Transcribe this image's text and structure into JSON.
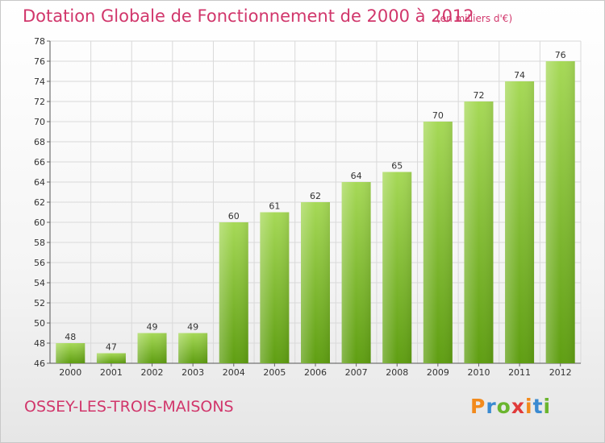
{
  "header": {
    "title": "Dotation Globale de Fonctionnement de 2000 à 2012",
    "subtitle": "(en milliers d'€)"
  },
  "footer": {
    "commune": "OSSEY-LES-TROIS-MAISONS",
    "logo_text": "Proxiti"
  },
  "colors": {
    "title": "#d1366b",
    "bar_light": "#9fd54e",
    "bar_dark": "#5f9e12",
    "grid": "#d9d9d9"
  },
  "chart_data": {
    "type": "bar",
    "title": "Dotation Globale de Fonctionnement de 2000 à 2012",
    "subtitle": "(en milliers d'€)",
    "xlabel": "",
    "ylabel": "",
    "categories": [
      "2000",
      "2001",
      "2002",
      "2003",
      "2004",
      "2005",
      "2006",
      "2007",
      "2008",
      "2009",
      "2010",
      "2011",
      "2012"
    ],
    "values": [
      48,
      47,
      49,
      49,
      60,
      61,
      62,
      64,
      65,
      70,
      72,
      74,
      76
    ],
    "ylim": [
      46,
      78
    ],
    "yticks": [
      46,
      48,
      50,
      52,
      54,
      56,
      58,
      60,
      62,
      64,
      66,
      68,
      70,
      72,
      74,
      76,
      78
    ],
    "grid": true,
    "legend": "none"
  }
}
